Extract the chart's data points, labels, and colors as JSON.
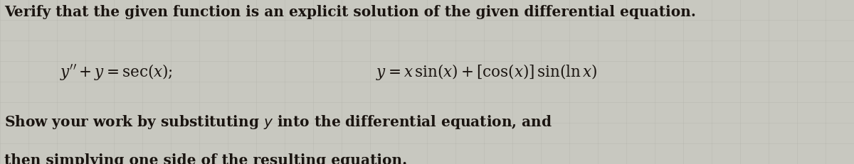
{
  "bg_color": "#c8c8c0",
  "text_color": "#1a1410",
  "line1": "Verify that the given function is an explicit solution of the given differential equation.",
  "line2_left": "$y'' + y = \\sec(x);$",
  "line2_right": "$y = x\\,\\sin(x) + [\\cos(x)]\\,\\sin(\\ln x)$",
  "line3": "Show your work by substituting $y$ into the differential equation, and",
  "line4": "then simplying one side of the resulting equation.",
  "font_size_main": 14.5,
  "font_size_eq": 15.5,
  "fig_width": 12.0,
  "fig_height": 2.32
}
